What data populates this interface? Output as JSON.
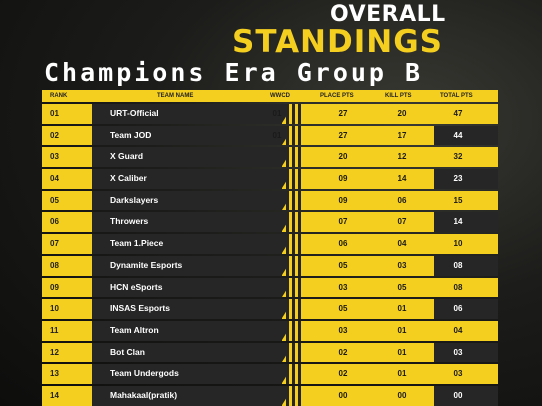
{
  "header": {
    "line1": "OVERALL",
    "line2": "STANDINGS",
    "line3": "Champions Era Group B"
  },
  "columns": {
    "rank": "RANK",
    "team": "TEAM NAME",
    "wwcd": "WWCD",
    "place": "PLACE PTS",
    "kill": "KILL PTS",
    "total": "TOTAL PTS"
  },
  "rows": [
    {
      "rank": "01",
      "team": "URT-Official",
      "wwcd": "01",
      "place": "27",
      "kill": "20",
      "total": "47"
    },
    {
      "rank": "02",
      "team": "Team JOD",
      "wwcd": "01",
      "place": "27",
      "kill": "17",
      "total": "44"
    },
    {
      "rank": "03",
      "team": "X Guard",
      "wwcd": "",
      "place": "20",
      "kill": "12",
      "total": "32"
    },
    {
      "rank": "04",
      "team": "X Caliber",
      "wwcd": "",
      "place": "09",
      "kill": "14",
      "total": "23"
    },
    {
      "rank": "05",
      "team": "Darkslayers",
      "wwcd": "",
      "place": "09",
      "kill": "06",
      "total": "15"
    },
    {
      "rank": "06",
      "team": "Throwers",
      "wwcd": "",
      "place": "07",
      "kill": "07",
      "total": "14"
    },
    {
      "rank": "07",
      "team": "Team 1.Piece",
      "wwcd": "",
      "place": "06",
      "kill": "04",
      "total": "10"
    },
    {
      "rank": "08",
      "team": "Dynamite Esports",
      "wwcd": "",
      "place": "05",
      "kill": "03",
      "total": "08"
    },
    {
      "rank": "09",
      "team": "HCN eSports",
      "wwcd": "",
      "place": "03",
      "kill": "05",
      "total": "08"
    },
    {
      "rank": "10",
      "team": "INSAS Esports",
      "wwcd": "",
      "place": "05",
      "kill": "01",
      "total": "06"
    },
    {
      "rank": "11",
      "team": "Team Altron",
      "wwcd": "",
      "place": "03",
      "kill": "01",
      "total": "04"
    },
    {
      "rank": "12",
      "team": "Bot Clan",
      "wwcd": "",
      "place": "02",
      "kill": "01",
      "total": "03"
    },
    {
      "rank": "13",
      "team": "Team Undergods",
      "wwcd": "",
      "place": "02",
      "kill": "01",
      "total": "03"
    },
    {
      "rank": "14",
      "team": "Mahakaal(pratik)",
      "wwcd": "",
      "place": "00",
      "kill": "00",
      "total": "00"
    }
  ]
}
